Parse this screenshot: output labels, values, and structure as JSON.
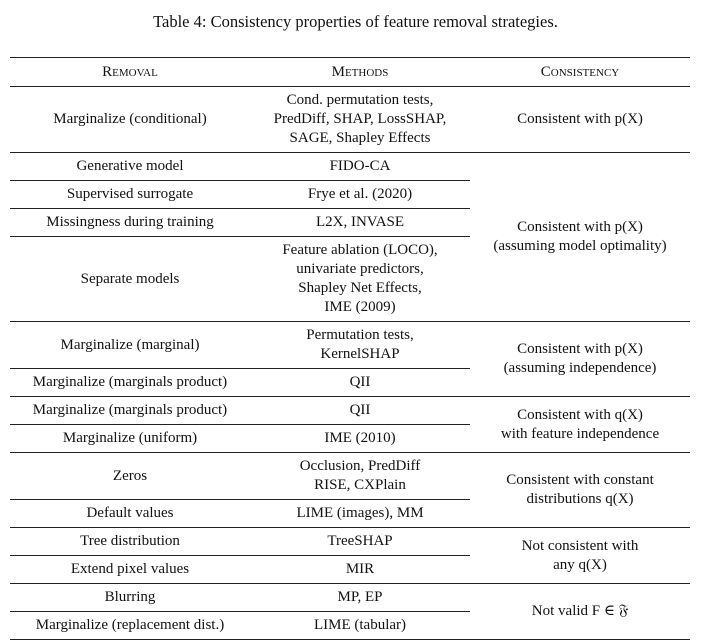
{
  "header": {
    "caption": "Table 4: Consistency properties of feature removal strategies."
  },
  "table": {
    "columns": [
      "Removal",
      "Methods",
      "Consistency"
    ],
    "groups": [
      {
        "consistency": [
          "Consistent with p(X)"
        ],
        "rows": [
          {
            "removal": [
              "Marginalize (conditional)"
            ],
            "methods": [
              "Cond. permutation tests,",
              "PredDiff, SHAP, LossSHAP,",
              "SAGE, Shapley Effects"
            ]
          }
        ]
      },
      {
        "consistency": [
          "Consistent with p(X)",
          "(assuming model optimality)"
        ],
        "rows": [
          {
            "removal": [
              "Generative model"
            ],
            "methods": [
              "FIDO-CA"
            ]
          },
          {
            "removal": [
              "Supervised surrogate"
            ],
            "methods": [
              "Frye et al. (2020)"
            ]
          },
          {
            "removal": [
              "Missingness during training"
            ],
            "methods": [
              "L2X, INVASE"
            ]
          },
          {
            "removal": [
              "Separate models"
            ],
            "methods": [
              "Feature ablation (LOCO),",
              "univariate predictors,",
              "Shapley Net Effects,",
              "IME (2009)"
            ]
          }
        ]
      },
      {
        "consistency": [
          "Consistent with p(X)",
          "(assuming independence)"
        ],
        "rows": [
          {
            "removal": [
              "Marginalize (marginal)"
            ],
            "methods": [
              "Permutation tests,",
              "KernelSHAP"
            ]
          },
          {
            "removal": [
              "Marginalize (marginals product)"
            ],
            "methods": [
              "QII"
            ]
          }
        ]
      },
      {
        "consistency": [
          "Consistent with q(X)",
          "with feature independence"
        ],
        "rows": [
          {
            "removal": [
              "Marginalize (marginals product)"
            ],
            "methods": [
              "QII"
            ]
          },
          {
            "removal": [
              "Marginalize (uniform)"
            ],
            "methods": [
              "IME (2010)"
            ]
          }
        ]
      },
      {
        "consistency": [
          "Consistent with constant",
          "distributions q(X)"
        ],
        "rows": [
          {
            "removal": [
              "Zeros"
            ],
            "methods": [
              "Occlusion, PredDiff",
              "RISE, CXPlain"
            ]
          },
          {
            "removal": [
              "Default values"
            ],
            "methods": [
              "LIME (images), MM"
            ]
          }
        ]
      },
      {
        "consistency": [
          "Not consistent with",
          "any q(X)"
        ],
        "rows": [
          {
            "removal": [
              "Tree distribution"
            ],
            "methods": [
              "TreeSHAP"
            ]
          },
          {
            "removal": [
              "Extend pixel values"
            ],
            "methods": [
              "MIR"
            ]
          }
        ]
      },
      {
        "consistency": [
          "Not valid F ∈ 𝔉"
        ],
        "rows": [
          {
            "removal": [
              "Blurring"
            ],
            "methods": [
              "MP, EP"
            ]
          },
          {
            "removal": [
              "Marginalize (replacement dist.)"
            ],
            "methods": [
              "LIME (tabular)"
            ]
          }
        ]
      }
    ]
  }
}
